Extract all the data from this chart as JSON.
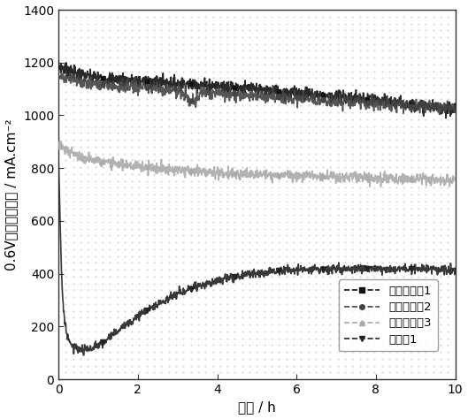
{
  "title": "",
  "xlabel": "时间 / h",
  "ylabel": "0.6V下的电流密度 / mA.cm⁻²",
  "xlim": [
    0,
    10
  ],
  "ylim": [
    0,
    1400
  ],
  "xticks": [
    0,
    2,
    4,
    6,
    8,
    10
  ],
  "yticks": [
    0,
    200,
    400,
    600,
    800,
    1000,
    1200,
    1400
  ],
  "series": [
    {
      "label": "对比实施例1",
      "color": "#111111",
      "marker": "s",
      "markersize": 3.5,
      "linewidth": 1.2,
      "noise_std": 12,
      "x": [
        0.0,
        0.05,
        0.1,
        0.2,
        0.3,
        0.5,
        0.7,
        1.0,
        1.5,
        2.0,
        2.5,
        3.0,
        3.5,
        4.0,
        5.0,
        6.0,
        7.0,
        8.0,
        9.0,
        10.0
      ],
      "y": [
        1185,
        1183,
        1180,
        1175,
        1168,
        1158,
        1150,
        1143,
        1137,
        1132,
        1127,
        1122,
        1118,
        1113,
        1098,
        1085,
        1073,
        1058,
        1040,
        1022
      ]
    },
    {
      "label": "对比实施例2",
      "color": "#444444",
      "marker": "o",
      "markersize": 3.5,
      "linewidth": 1.2,
      "noise_std": 12,
      "x": [
        0.0,
        0.05,
        0.1,
        0.2,
        0.3,
        0.5,
        0.7,
        1.0,
        1.5,
        2.0,
        2.5,
        3.0,
        3.4,
        3.6,
        4.0,
        5.0,
        6.0,
        7.0,
        8.0,
        9.0,
        10.0
      ],
      "y": [
        1148,
        1146,
        1144,
        1140,
        1136,
        1130,
        1124,
        1118,
        1112,
        1107,
        1103,
        1098,
        1045,
        1090,
        1085,
        1075,
        1065,
        1055,
        1045,
        1035,
        1025
      ]
    },
    {
      "label": "对比实施例3",
      "color": "#aaaaaa",
      "marker": "^",
      "markersize": 3.5,
      "linewidth": 1.2,
      "noise_std": 10,
      "x": [
        0.0,
        0.1,
        0.2,
        0.3,
        0.5,
        0.7,
        1.0,
        1.5,
        2.0,
        2.5,
        3.0,
        4.0,
        5.0,
        6.0,
        7.0,
        8.0,
        9.0,
        10.0
      ],
      "y": [
        895,
        878,
        865,
        857,
        845,
        835,
        825,
        815,
        808,
        800,
        793,
        783,
        776,
        772,
        768,
        763,
        758,
        752
      ]
    },
    {
      "label": "实施例1",
      "color": "#222222",
      "marker": "v",
      "markersize": 4.0,
      "linewidth": 1.2,
      "noise_std": 8,
      "x": [
        0.0,
        0.03,
        0.06,
        0.1,
        0.15,
        0.2,
        0.25,
        0.3,
        0.4,
        0.5,
        0.6,
        0.7,
        0.8,
        0.9,
        1.0,
        1.2,
        1.5,
        2.0,
        2.5,
        3.0,
        3.5,
        4.0,
        4.5,
        5.0,
        5.5,
        6.0,
        7.0,
        8.0,
        9.0,
        10.0
      ],
      "y": [
        820,
        680,
        480,
        320,
        230,
        178,
        152,
        138,
        122,
        115,
        112,
        112,
        115,
        120,
        128,
        148,
        185,
        240,
        285,
        322,
        352,
        375,
        392,
        403,
        410,
        414,
        418,
        420,
        418,
        416
      ]
    }
  ],
  "legend_labels": [
    "对比实施例1",
    "对比实施例2",
    "对比实施例3",
    "实施例1"
  ],
  "legend_colors": [
    "#111111",
    "#444444",
    "#aaaaaa",
    "#222222"
  ],
  "legend_markers": [
    "s",
    "o",
    "^",
    "v"
  ],
  "background_color": "#ffffff",
  "dot_grid_color": "#bbbbbb",
  "font_size": 10,
  "label_font_size": 11
}
